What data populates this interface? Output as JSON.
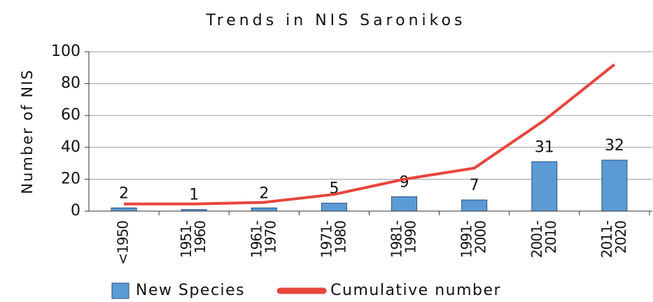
{
  "chart_data": {
    "type": "bar",
    "title": "Trends in NIS Saronikos",
    "y_label": "Number of NIS",
    "categories": [
      "<1950",
      "1951-1960",
      "1961-1970",
      "1971-1980",
      "1981-1990",
      "1991-2000",
      "2001-2010",
      "2011-2020"
    ],
    "series": [
      {
        "name": "New Species",
        "type": "bar",
        "color": "#5b9bd5",
        "values": [
          2,
          1,
          2,
          5,
          9,
          7,
          31,
          32
        ]
      },
      {
        "name": "Cumulative number",
        "type": "line",
        "color": "#e8453c",
        "values": [
          4.5,
          4.5,
          5.5,
          10.5,
          20,
          27,
          57,
          92
        ]
      }
    ],
    "ylim": [
      0,
      100
    ],
    "yticks": [
      0,
      20,
      40,
      60,
      80,
      100
    ],
    "grid": true,
    "legend": "bottom"
  }
}
